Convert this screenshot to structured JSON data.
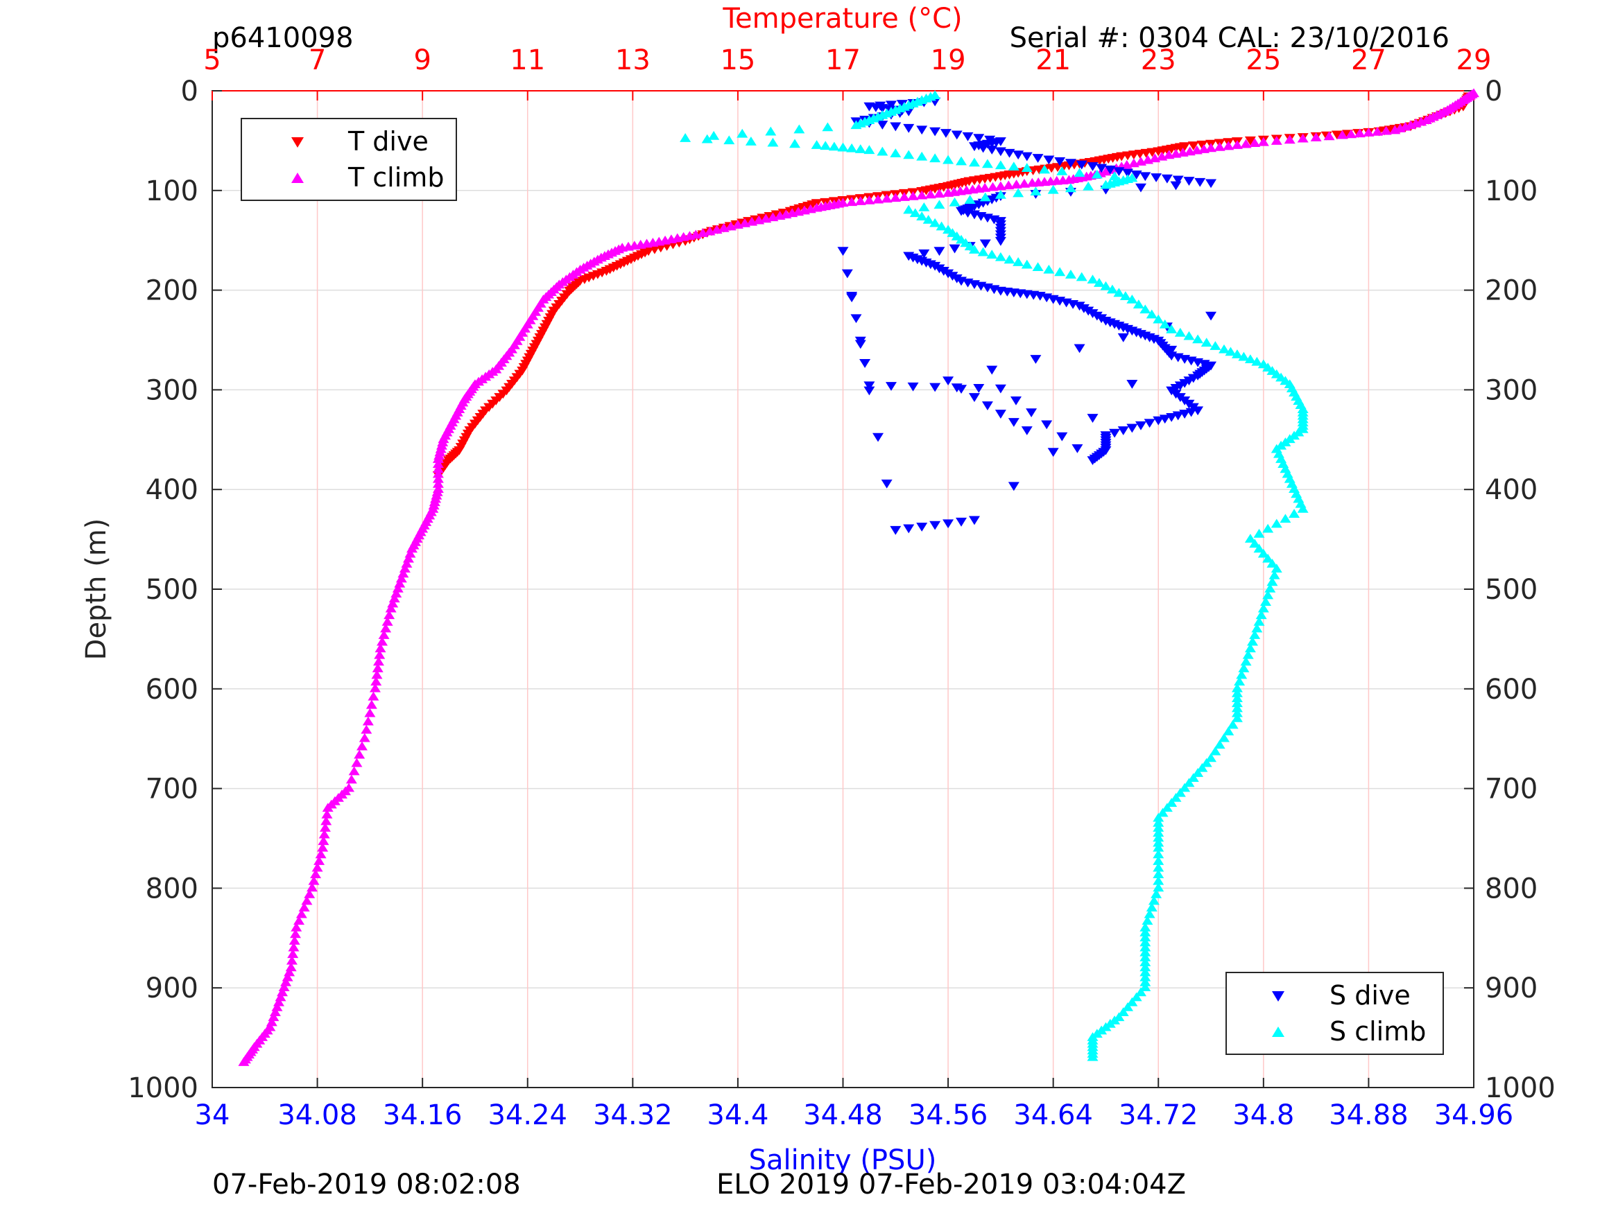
{
  "header": {
    "profile_id": "p6410098",
    "serial": "Serial #: 0304  CAL: 23/10/2016"
  },
  "footer": {
    "left": "07-Feb-2019 08:02:08",
    "center": "ELO 2019 07-Feb-2019 03:04:04Z"
  },
  "colors": {
    "temperature_axis": "#ff0000",
    "salinity_axis": "#0000ff",
    "t_dive": "#ff0000",
    "t_climb": "#ff00ff",
    "s_dive": "#0000ff",
    "s_climb": "#00ffff"
  },
  "chart_data": {
    "type": "scatter",
    "y_axis": {
      "label": "Depth (m)",
      "range": [
        0,
        1000
      ],
      "reversed": true,
      "ticks": [
        0,
        100,
        200,
        300,
        400,
        500,
        600,
        700,
        800,
        900,
        1000
      ],
      "tick_labels": [
        "0",
        "100",
        "200",
        "300",
        "400",
        "500",
        "600",
        "700",
        "800",
        "900",
        "1000"
      ]
    },
    "temperature_axis": {
      "label": "Temperature (°C)",
      "position": "top",
      "range": [
        5,
        29
      ],
      "ticks": [
        5,
        7,
        9,
        11,
        13,
        15,
        17,
        19,
        21,
        23,
        25,
        27,
        29
      ],
      "tick_labels": [
        "5",
        "7",
        "9",
        "11",
        "13",
        "15",
        "17",
        "19",
        "21",
        "23",
        "25",
        "27",
        "29"
      ]
    },
    "salinity_axis": {
      "label": "Salinity (PSU)",
      "position": "bottom",
      "range": [
        34.0,
        34.96
      ],
      "ticks": [
        34.0,
        34.08,
        34.16,
        34.24,
        34.32,
        34.4,
        34.48,
        34.56,
        34.64,
        34.72,
        34.8,
        34.88,
        34.96
      ],
      "tick_labels": [
        "34",
        "34.08",
        "34.16",
        "34.24",
        "34.32",
        "34.4",
        "34.48",
        "34.56",
        "34.64",
        "34.72",
        "34.8",
        "34.88",
        "34.96"
      ]
    },
    "grid": {
      "vertical": "red temperature gridlines",
      "horizontal": "gray depth gridlines"
    },
    "legends": [
      {
        "placement": "top-left",
        "entries": [
          "T dive",
          "T climb"
        ]
      },
      {
        "placement": "bottom-right",
        "entries": [
          "S dive",
          "S climb"
        ]
      }
    ],
    "series": [
      {
        "name": "T dive",
        "axis": "temperature",
        "marker": "triangle-down",
        "points": [
          [
            28.9,
            5
          ],
          [
            28.8,
            15
          ],
          [
            28.3,
            25
          ],
          [
            27.8,
            35
          ],
          [
            27.2,
            40
          ],
          [
            26.0,
            45
          ],
          [
            24.5,
            50
          ],
          [
            23.5,
            55
          ],
          [
            23.0,
            60
          ],
          [
            22.3,
            65
          ],
          [
            21.8,
            70
          ],
          [
            21.2,
            75
          ],
          [
            20.5,
            80
          ],
          [
            20.0,
            85
          ],
          [
            19.4,
            90
          ],
          [
            19.0,
            95
          ],
          [
            18.5,
            100
          ],
          [
            17.5,
            106
          ],
          [
            16.5,
            112
          ],
          [
            16.0,
            120
          ],
          [
            15.2,
            130
          ],
          [
            14.5,
            140
          ],
          [
            14.0,
            150
          ],
          [
            13.3,
            160
          ],
          [
            12.9,
            170
          ],
          [
            12.5,
            180
          ],
          [
            12.0,
            190
          ],
          [
            11.8,
            200
          ],
          [
            11.5,
            220
          ],
          [
            11.3,
            240
          ],
          [
            11.1,
            260
          ],
          [
            10.9,
            280
          ],
          [
            10.6,
            300
          ],
          [
            10.2,
            320
          ],
          [
            9.9,
            340
          ],
          [
            9.7,
            360
          ],
          [
            9.5,
            370
          ],
          [
            9.3,
            385
          ]
        ]
      },
      {
        "name": "T climb",
        "axis": "temperature",
        "marker": "triangle-up",
        "points": [
          [
            29.0,
            3
          ],
          [
            28.8,
            10
          ],
          [
            28.5,
            20
          ],
          [
            28.1,
            30
          ],
          [
            27.5,
            40
          ],
          [
            26.5,
            45
          ],
          [
            25.0,
            52
          ],
          [
            24.0,
            58
          ],
          [
            23.2,
            65
          ],
          [
            22.4,
            75
          ],
          [
            21.8,
            85
          ],
          [
            21.3,
            90
          ],
          [
            20.6,
            93
          ],
          [
            19.7,
            98
          ],
          [
            19.0,
            103
          ],
          [
            18.0,
            108
          ],
          [
            17.0,
            113
          ],
          [
            16.5,
            118
          ],
          [
            15.8,
            126
          ],
          [
            15.0,
            135
          ],
          [
            14.2,
            145
          ],
          [
            13.5,
            152
          ],
          [
            12.8,
            158
          ],
          [
            12.4,
            168
          ],
          [
            12.0,
            180
          ],
          [
            11.6,
            195
          ],
          [
            11.3,
            210
          ],
          [
            11.0,
            235
          ],
          [
            10.7,
            260
          ],
          [
            10.4,
            280
          ],
          [
            10.0,
            295
          ],
          [
            9.8,
            310
          ],
          [
            9.6,
            330
          ],
          [
            9.4,
            350
          ],
          [
            9.3,
            370
          ],
          [
            9.3,
            400
          ],
          [
            9.2,
            420
          ],
          [
            9.0,
            440
          ],
          [
            8.8,
            460
          ],
          [
            8.6,
            490
          ],
          [
            8.4,
            520
          ],
          [
            8.2,
            560
          ],
          [
            8.1,
            600
          ],
          [
            7.9,
            650
          ],
          [
            7.6,
            700
          ],
          [
            7.2,
            720
          ],
          [
            7.1,
            760
          ],
          [
            6.9,
            800
          ],
          [
            6.6,
            840
          ],
          [
            6.5,
            880
          ],
          [
            6.3,
            910
          ],
          [
            6.1,
            940
          ],
          [
            5.8,
            960
          ],
          [
            5.6,
            975
          ]
        ]
      },
      {
        "name": "S dive",
        "axis": "salinity",
        "marker": "triangle-down",
        "points": [
          [
            34.55,
            10
          ],
          [
            34.5,
            15
          ],
          [
            34.53,
            20
          ],
          [
            34.49,
            30
          ],
          [
            34.55,
            40
          ],
          [
            34.6,
            50
          ],
          [
            34.58,
            55
          ],
          [
            34.62,
            65
          ],
          [
            34.67,
            75
          ],
          [
            34.71,
            85
          ],
          [
            34.76,
            92
          ],
          [
            34.6,
            105
          ],
          [
            34.58,
            115
          ],
          [
            34.57,
            120
          ],
          [
            34.6,
            130
          ],
          [
            34.6,
            150
          ],
          [
            34.53,
            165
          ],
          [
            34.55,
            175
          ],
          [
            34.57,
            190
          ],
          [
            34.6,
            200
          ],
          [
            34.63,
            205
          ],
          [
            34.66,
            215
          ],
          [
            34.68,
            230
          ],
          [
            34.7,
            240
          ],
          [
            34.72,
            250
          ],
          [
            34.73,
            265
          ],
          [
            34.76,
            275
          ],
          [
            34.75,
            285
          ],
          [
            34.73,
            300
          ],
          [
            34.75,
            320
          ],
          [
            34.72,
            330
          ],
          [
            34.68,
            345
          ],
          [
            34.68,
            360
          ],
          [
            34.67,
            370
          ],
          [
            34.6,
            298
          ],
          [
            34.5,
            295
          ],
          [
            34.48,
            160
          ],
          [
            34.52,
            440
          ],
          [
            34.58,
            430
          ],
          [
            34.76,
            225
          ],
          [
            34.56,
            290
          ],
          [
            34.62,
            340
          ]
        ]
      },
      {
        "name": "S climb",
        "axis": "salinity",
        "marker": "triangle-up",
        "points": [
          [
            34.55,
            5
          ],
          [
            34.53,
            15
          ],
          [
            34.51,
            25
          ],
          [
            34.49,
            35
          ],
          [
            34.36,
            48
          ],
          [
            34.46,
            55
          ],
          [
            34.5,
            60
          ],
          [
            34.56,
            70
          ],
          [
            34.62,
            78
          ],
          [
            34.7,
            88
          ],
          [
            34.68,
            95
          ],
          [
            34.6,
            105
          ],
          [
            34.53,
            120
          ],
          [
            34.56,
            140
          ],
          [
            34.58,
            160
          ],
          [
            34.62,
            175
          ],
          [
            34.67,
            190
          ],
          [
            34.7,
            210
          ],
          [
            34.73,
            240
          ],
          [
            34.77,
            260
          ],
          [
            34.8,
            275
          ],
          [
            34.82,
            295
          ],
          [
            34.83,
            320
          ],
          [
            34.83,
            340
          ],
          [
            34.81,
            360
          ],
          [
            34.82,
            390
          ],
          [
            34.83,
            420
          ],
          [
            34.79,
            450
          ],
          [
            34.81,
            480
          ],
          [
            34.8,
            520
          ],
          [
            34.79,
            560
          ],
          [
            34.78,
            600
          ],
          [
            34.78,
            630
          ],
          [
            34.76,
            670
          ],
          [
            34.74,
            700
          ],
          [
            34.72,
            730
          ],
          [
            34.72,
            760
          ],
          [
            34.72,
            800
          ],
          [
            34.71,
            840
          ],
          [
            34.71,
            870
          ],
          [
            34.71,
            900
          ],
          [
            34.69,
            930
          ],
          [
            34.67,
            950
          ],
          [
            34.67,
            970
          ]
        ]
      }
    ]
  }
}
